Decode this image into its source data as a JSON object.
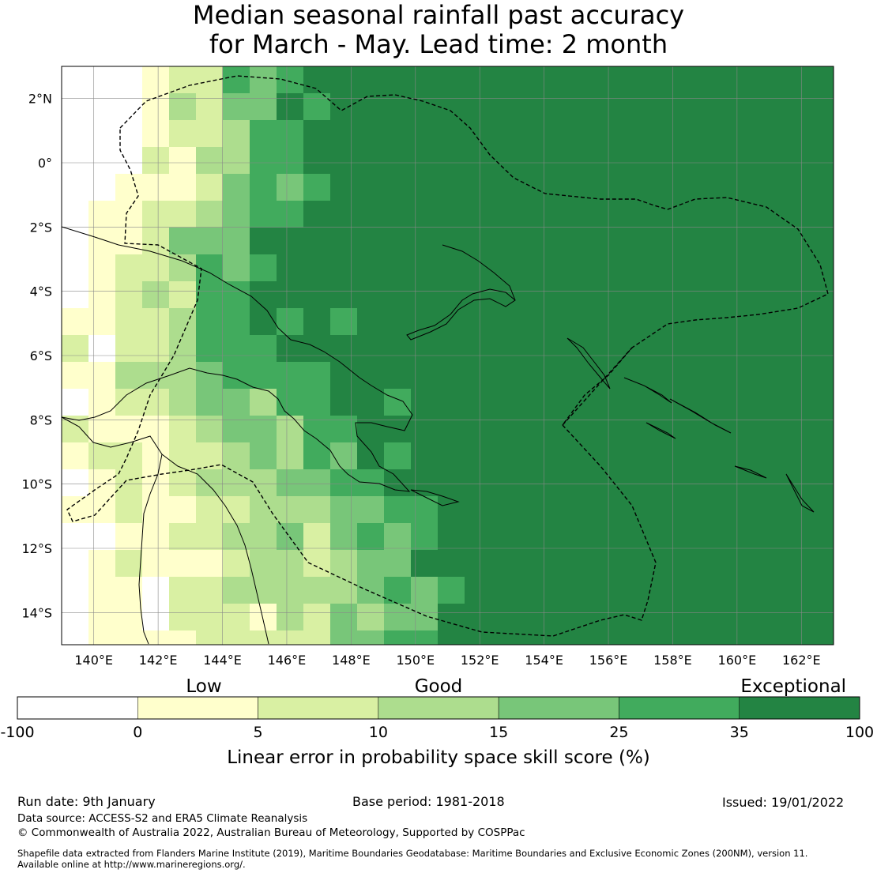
{
  "title": {
    "line1": "Median seasonal rainfall past accuracy",
    "line2": "for March - May. Lead time: 2 month"
  },
  "map": {
    "lat_ticks": [
      {
        "value": 2,
        "label": "2°N"
      },
      {
        "value": 0,
        "label": "0°"
      },
      {
        "value": -2,
        "label": "2°S"
      },
      {
        "value": -4,
        "label": "4°S"
      },
      {
        "value": -6,
        "label": "6°S"
      },
      {
        "value": -8,
        "label": "8°S"
      },
      {
        "value": -10,
        "label": "10°S"
      },
      {
        "value": -12,
        "label": "12°S"
      },
      {
        "value": -14,
        "label": "14°S"
      }
    ],
    "lon_ticks": [
      {
        "value": 140,
        "label": "140°E"
      },
      {
        "value": 142,
        "label": "142°E"
      },
      {
        "value": 144,
        "label": "144°E"
      },
      {
        "value": 146,
        "label": "146°E"
      },
      {
        "value": 148,
        "label": "148°E"
      },
      {
        "value": 150,
        "label": "150°E"
      },
      {
        "value": 152,
        "label": "152°E"
      },
      {
        "value": 154,
        "label": "154°E"
      },
      {
        "value": 156,
        "label": "156°E"
      },
      {
        "value": 158,
        "label": "158°E"
      },
      {
        "value": 160,
        "label": "160°E"
      },
      {
        "value": 162,
        "label": "162°E"
      }
    ],
    "lon_range": [
      139,
      163
    ],
    "lat_range": [
      -15,
      3
    ]
  },
  "legend": {
    "category_labels": [
      "Low",
      "Good",
      "Exceptional"
    ],
    "tick_labels": [
      "-100",
      "0",
      "5",
      "10",
      "15",
      "25",
      "35",
      "100"
    ],
    "colors": [
      "#ffffff",
      "#ffffcc",
      "#d9f0a3",
      "#addd8e",
      "#78c679",
      "#41ab5d",
      "#238443"
    ],
    "axis_label": "Linear error in probability space skill score (%)"
  },
  "footer": {
    "run_date": "Run date: 9th January",
    "base_period": "Base period: 1981-2018",
    "issued": "Issued: 19/01/2022",
    "data_source": "Data source: ACCESS-S2 and ERA5 Climate Reanalysis",
    "copyright": "© Commonwealth of Australia 2022, Australian Bureau of Meteorology, Supported by COSPPac",
    "shapefile_line1": "Shapefile data extracted from Flanders Marine Institute (2019), Maritime Boundaries Geodatabase: Maritime Boundaries and Exclusive Economic Zones (200NM), version 11.",
    "shapefile_line2": "Available online at http://www.marineregions.org/."
  }
}
